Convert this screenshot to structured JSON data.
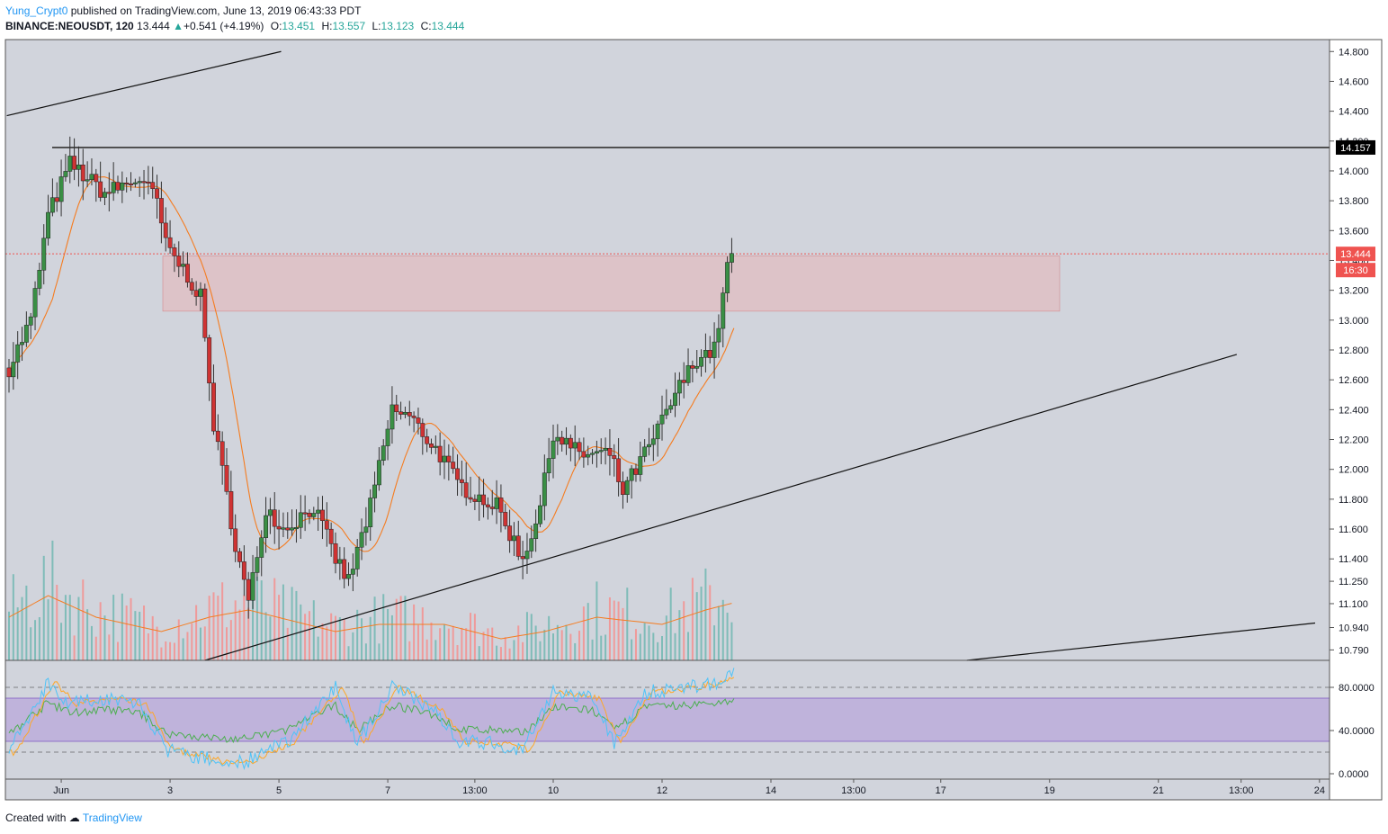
{
  "header": {
    "author": "Yung_Crypt0",
    "published": "published on TradingView.com, June 13, 2019 06:43:33 PDT",
    "symbol": "BINANCE:NEOUSDT, 120",
    "last": "13.444",
    "arrow": "▲",
    "change": "+0.541 (+4.19%)",
    "o_label": "O:",
    "o_value": "13.451",
    "h_label": "H:",
    "h_value": "13.557",
    "l_label": "L:",
    "l_value": "13.123",
    "c_label": "C:",
    "c_value": "13.444"
  },
  "footer": {
    "created_with": "Created with",
    "brand": "TradingView"
  },
  "chart_data": {
    "type": "candlestick",
    "title": "BINANCE:NEOUSDT, 120",
    "price_axis": {
      "range": [
        10.72,
        14.88
      ],
      "ticks": [
        "14.800",
        "14.600",
        "14.400",
        "14.200",
        "14.000",
        "13.800",
        "13.600",
        "13.400",
        "13.200",
        "13.000",
        "12.800",
        "12.600",
        "12.400",
        "12.200",
        "12.000",
        "11.800",
        "11.600",
        "11.400",
        "11.250",
        "11.100",
        "10.940",
        "10.790"
      ]
    },
    "oscillator_axis": {
      "range": [
        -5,
        105
      ],
      "ticks": [
        "80.0000",
        "40.0000",
        "0.0000"
      ],
      "band": [
        30,
        70
      ],
      "dashed_levels": [
        20,
        80
      ]
    },
    "time_axis": [
      "Jun",
      "3",
      "5",
      "7",
      "13:00",
      "10",
      "12",
      "14",
      "13:00",
      "17",
      "19",
      "21",
      "13:00",
      "24"
    ],
    "labels": {
      "resistance": "14.157",
      "last_price": "13.444",
      "countdown": "16:30"
    },
    "resistance_level": 14.157,
    "last_price_level": 13.444,
    "supply_zone": {
      "from": 13.06,
      "to": 13.43
    },
    "colors": {
      "background": "#d1d4dc",
      "up": "#3a8f45",
      "down": "#cf3333",
      "ma": "#f57c20",
      "zone": "#e8b4b8",
      "osc_band": "#b39ddb",
      "osc_fast": "#4fc3f7",
      "osc_slow": "#ffa726",
      "osc_rsi": "#4caf50",
      "price_label": "#ef5350",
      "resistance_label": "#000000"
    },
    "waypoints": [
      [
        0,
        12.68
      ],
      [
        10,
        13.0
      ],
      [
        18,
        13.7
      ],
      [
        28,
        14.05
      ],
      [
        44,
        13.85
      ],
      [
        60,
        13.95
      ],
      [
        68,
        13.8
      ],
      [
        72,
        13.5
      ],
      [
        82,
        13.3
      ],
      [
        88,
        13.15
      ],
      [
        94,
        12.3
      ],
      [
        104,
        11.5
      ],
      [
        110,
        11.1
      ],
      [
        118,
        11.75
      ],
      [
        126,
        11.6
      ],
      [
        140,
        11.75
      ],
      [
        150,
        11.4
      ],
      [
        156,
        11.25
      ],
      [
        166,
        11.75
      ],
      [
        176,
        12.4
      ],
      [
        184,
        12.35
      ],
      [
        198,
        12.1
      ],
      [
        206,
        11.9
      ],
      [
        224,
        11.75
      ],
      [
        236,
        11.4
      ],
      [
        244,
        11.75
      ],
      [
        250,
        12.25
      ],
      [
        262,
        12.1
      ],
      [
        276,
        12.1
      ],
      [
        282,
        11.85
      ],
      [
        296,
        12.2
      ],
      [
        306,
        12.5
      ],
      [
        316,
        12.75
      ],
      [
        324,
        12.8
      ],
      [
        330,
        13.35
      ],
      [
        333,
        13.45
      ]
    ],
    "volume_waypoints": [
      [
        0,
        0.3
      ],
      [
        18,
        0.45
      ],
      [
        40,
        0.3
      ],
      [
        70,
        0.2
      ],
      [
        92,
        0.3
      ],
      [
        110,
        0.35
      ],
      [
        150,
        0.2
      ],
      [
        170,
        0.25
      ],
      [
        200,
        0.25
      ],
      [
        226,
        0.15
      ],
      [
        246,
        0.2
      ],
      [
        270,
        0.3
      ],
      [
        300,
        0.25
      ],
      [
        320,
        0.35
      ],
      [
        333,
        0.4
      ]
    ],
    "trendlines": [
      {
        "from": [
          -1,
          14.37
        ],
        "to": [
          125,
          14.8
        ]
      },
      {
        "from": [
          90,
          10.72
        ],
        "to": [
          564,
          12.77
        ]
      },
      {
        "from": [
          440,
          10.72
        ],
        "to": [
          600,
          10.97
        ]
      }
    ],
    "oscillator_waypoints": [
      [
        0,
        20
      ],
      [
        18,
        85
      ],
      [
        28,
        65
      ],
      [
        46,
        70
      ],
      [
        60,
        65
      ],
      [
        72,
        22
      ],
      [
        82,
        18
      ],
      [
        98,
        10
      ],
      [
        110,
        12
      ],
      [
        128,
        30
      ],
      [
        150,
        80
      ],
      [
        160,
        28
      ],
      [
        176,
        80
      ],
      [
        196,
        60
      ],
      [
        206,
        30
      ],
      [
        224,
        28
      ],
      [
        236,
        22
      ],
      [
        250,
        75
      ],
      [
        268,
        70
      ],
      [
        278,
        28
      ],
      [
        292,
        75
      ],
      [
        312,
        80
      ],
      [
        326,
        85
      ],
      [
        333,
        93
      ]
    ]
  }
}
